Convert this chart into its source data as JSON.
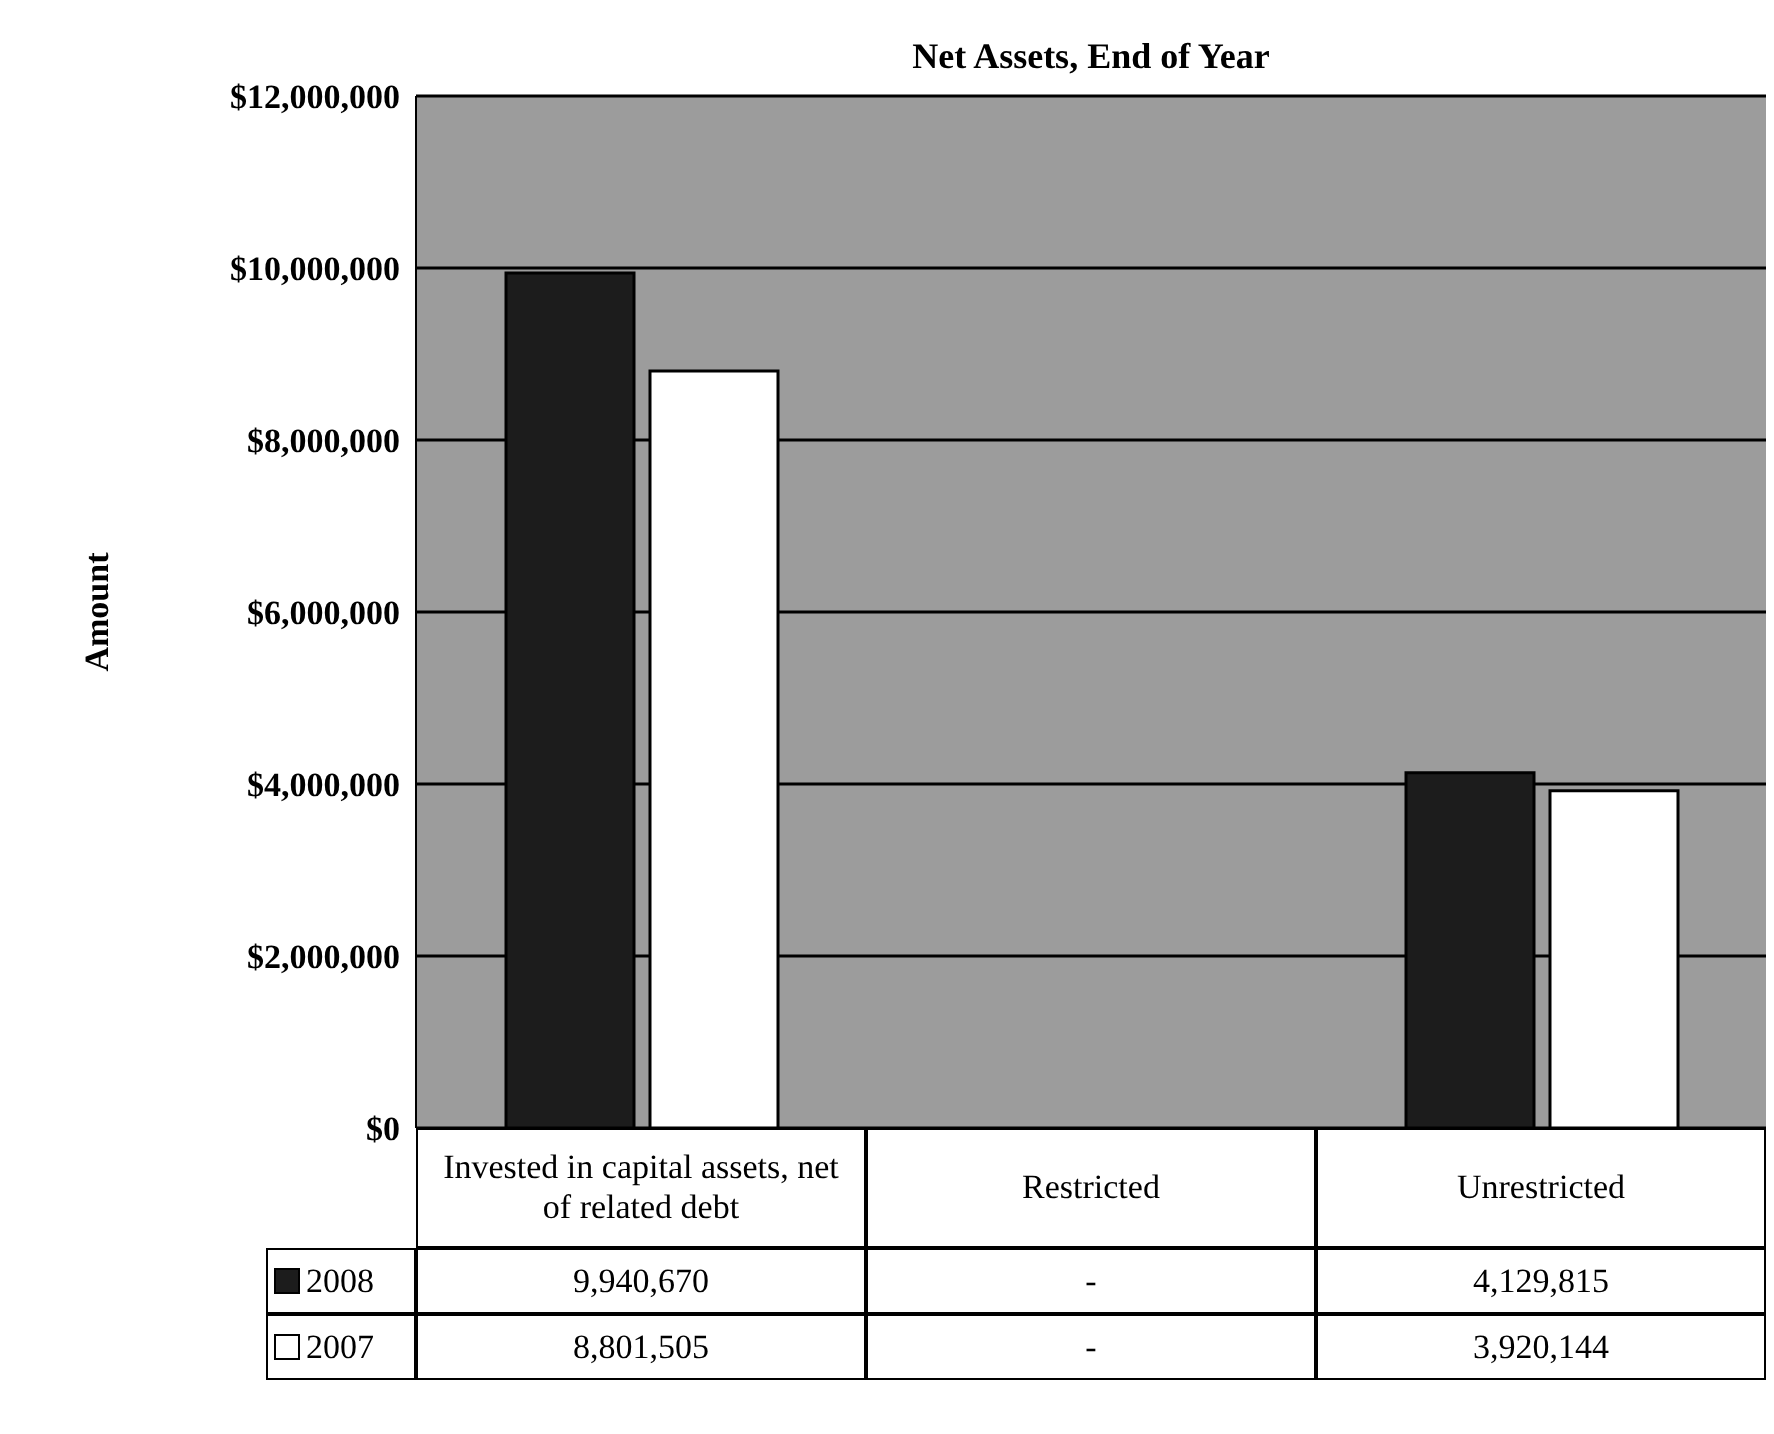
{
  "chart_data": {
    "type": "bar",
    "title": "Net Assets, End of Year",
    "ylabel": "Amount",
    "categories": [
      "Invested in capital assets, net of related debt",
      "Restricted",
      "Unrestricted"
    ],
    "series": [
      {
        "name": "2008",
        "color": "#1c1c1c",
        "values": [
          9940670,
          null,
          4129815
        ],
        "value_labels": [
          "9,940,670",
          "-",
          "4,129,815"
        ]
      },
      {
        "name": "2007",
        "color": "#ffffff",
        "values": [
          8801505,
          null,
          3920144
        ],
        "value_labels": [
          "8,801,505",
          "-",
          "3,920,144"
        ]
      }
    ],
    "ylim": [
      0,
      12000000
    ],
    "yticks": [
      {
        "value": 0,
        "label": "$0"
      },
      {
        "value": 2000000,
        "label": "$2,000,000"
      },
      {
        "value": 4000000,
        "label": "$4,000,000"
      },
      {
        "value": 6000000,
        "label": "$6,000,000"
      },
      {
        "value": 8000000,
        "label": "$8,000,000"
      },
      {
        "value": 10000000,
        "label": "$10,000,000"
      },
      {
        "value": 12000000,
        "label": "$12,000,000"
      }
    ],
    "grid": "y",
    "legend": "bottom left"
  }
}
